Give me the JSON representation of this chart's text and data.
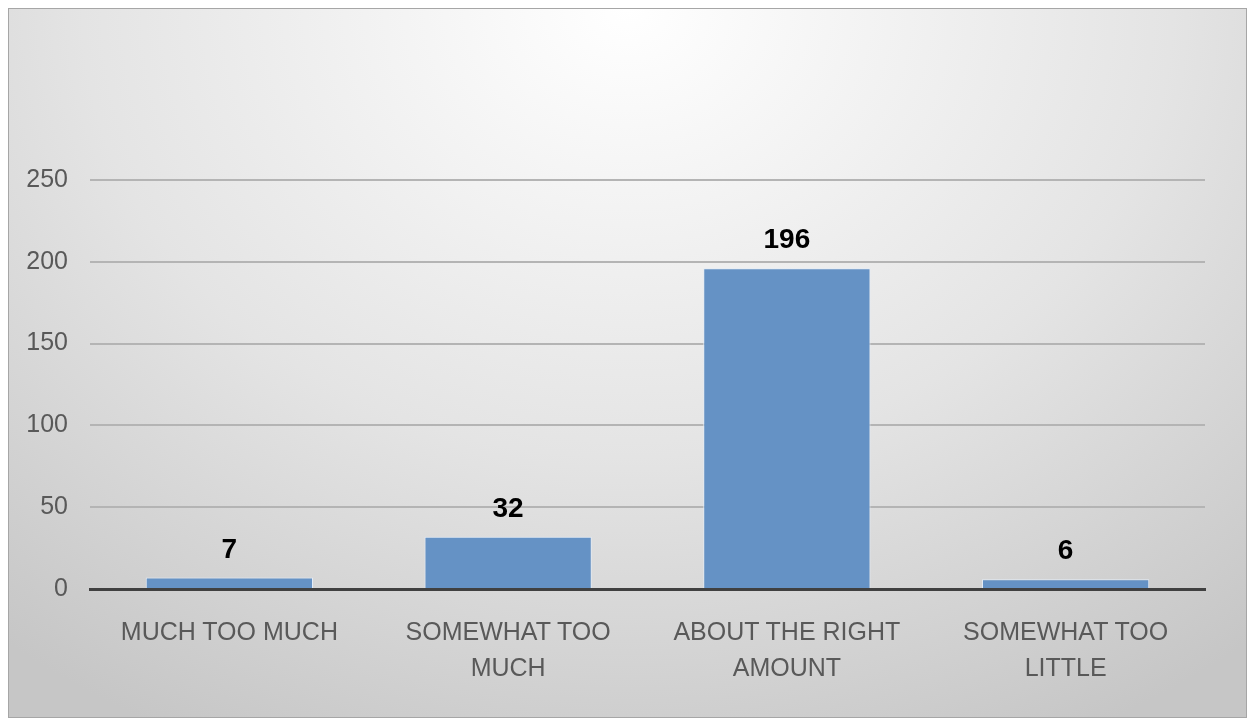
{
  "chart_data": {
    "type": "bar",
    "categories": [
      "MUCH TOO MUCH",
      "SOMEWHAT TOO MUCH",
      "ABOUT THE RIGHT AMOUNT",
      "SOMEWHAT TOO LITTLE"
    ],
    "values": [
      7,
      32,
      196,
      6
    ],
    "color": "#6592c5",
    "ylim": [
      0,
      250
    ],
    "yticks": [
      0,
      50,
      100,
      150,
      200,
      250
    ],
    "grid": "y",
    "data_labels": true
  }
}
